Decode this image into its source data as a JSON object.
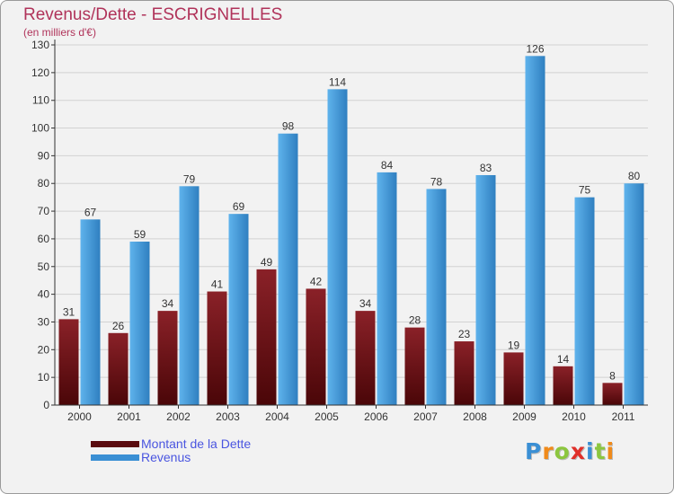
{
  "colors": {
    "title": "#b0335a",
    "background": "#f2f2f2",
    "grid": "#d2d2d2",
    "axis": "#333333",
    "dette_top": "#8a2128",
    "dette_bottom": "#4a0608",
    "revenus_top": "#5fb3ec",
    "revenus_bottom": "#2f7fc0",
    "legend_text": "#4a55e0"
  },
  "header": {
    "title": "Revenus/Dette - ESCRIGNELLES",
    "subtitle": "(en milliers d'€)"
  },
  "legend": {
    "items": [
      {
        "label": "Montant de la Dette",
        "color": "#5a0a0e"
      },
      {
        "label": "Revenus",
        "color": "#3a8fd4"
      }
    ]
  },
  "logo": {
    "text": "Proxiti",
    "letters": [
      {
        "char": "P",
        "color": "#3a8fd4"
      },
      {
        "char": "r",
        "color": "#f08a1a"
      },
      {
        "char": "o",
        "color": "#8cc63f"
      },
      {
        "char": "x",
        "color": "#e0302a"
      },
      {
        "char": "i",
        "color": "#3a8fd4"
      },
      {
        "char": "t",
        "color": "#8cc63f"
      },
      {
        "char": "i",
        "color": "#f08a1a"
      }
    ]
  },
  "chart_data": {
    "type": "bar",
    "title": "Revenus/Dette - ESCRIGNELLES",
    "subtitle": "(en milliers d'€)",
    "categories": [
      "2000",
      "2001",
      "2002",
      "2003",
      "2004",
      "2005",
      "2006",
      "2007",
      "2008",
      "2009",
      "2010",
      "2011"
    ],
    "series": [
      {
        "name": "Montant de la Dette",
        "values": [
          31,
          26,
          34,
          41,
          49,
          42,
          34,
          28,
          23,
          19,
          14,
          8
        ]
      },
      {
        "name": "Revenus",
        "values": [
          67,
          59,
          79,
          69,
          98,
          114,
          84,
          78,
          83,
          126,
          75,
          80
        ]
      }
    ],
    "ylim": [
      0,
      130
    ],
    "yticks": [
      0,
      10,
      20,
      30,
      40,
      50,
      60,
      70,
      80,
      90,
      100,
      110,
      120,
      130
    ],
    "grid": true,
    "legend_position": "bottom-left"
  }
}
